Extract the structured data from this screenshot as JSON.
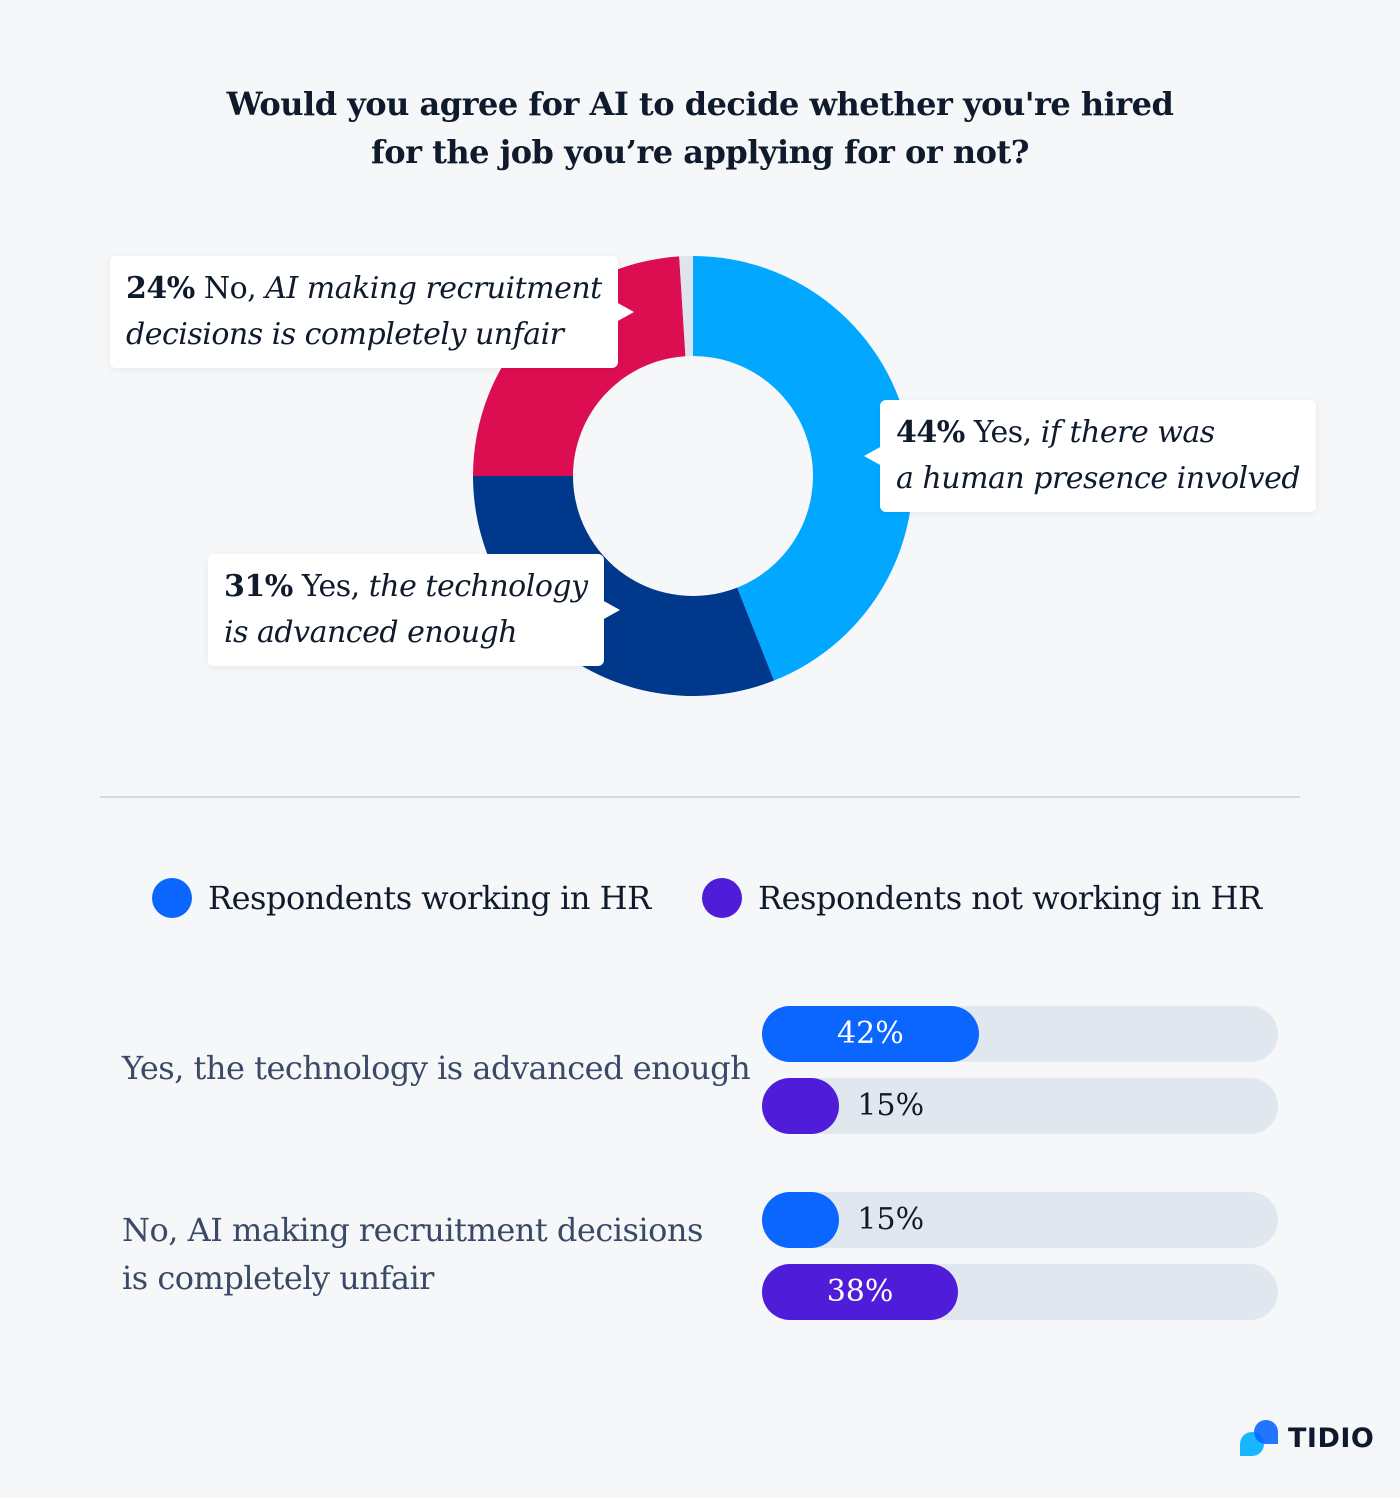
{
  "title_line1": "Would you agree for AI to decide whether you're hired",
  "title_line2": "for the job you’re applying for or not?",
  "chart_data": [
    {
      "type": "pie",
      "donut": true,
      "start": "top",
      "direction": "clockwise",
      "slices": [
        {
          "label": "Yes, if there was a human presence involved",
          "value": 44,
          "color": "#02a8ff"
        },
        {
          "label": "Yes, the technology is advanced enough",
          "value": 31,
          "color": "#00388b"
        },
        {
          "label": "No, AI making recruitment decisions is completely unfair",
          "value": 24,
          "color": "#dc0d50"
        },
        {
          "label": "",
          "value": 1,
          "color": "#dfe5ee"
        }
      ],
      "callouts": {
        "no": {
          "pct": "24%",
          "head": "No,",
          "line1": "AI making  recruitment",
          "line2": "decisions is completely unfair"
        },
        "yes_human": {
          "pct": "44%",
          "head": "Yes,",
          "line1": "if there was",
          "line2": "a human presence involved"
        },
        "yes_tech": {
          "pct": "31%",
          "head": "Yes,",
          "line1": "the technology",
          "line2": "is advanced enough"
        }
      }
    },
    {
      "type": "bar",
      "orientation": "horizontal",
      "xlim": [
        0,
        100
      ],
      "legend": [
        "Respondents working in HR",
        "Respondents not working in HR"
      ],
      "legend_placement": "top",
      "colors": [
        "#0a66ff",
        "#4f1dd9"
      ],
      "track_color": "#e1e7ef",
      "categories": [
        {
          "line1": "Yes, the technology is advanced enough",
          "line2": ""
        },
        {
          "line1": "No, AI making recruitment decisions",
          "line2": "is completely unfair"
        }
      ],
      "series": [
        {
          "name": "Respondents working in HR",
          "values": [
            42,
            15
          ],
          "labels": [
            "42%",
            "15%"
          ]
        },
        {
          "name": "Respondents not working in HR",
          "values": [
            15,
            38
          ],
          "labels": [
            "15%",
            "38%"
          ]
        }
      ]
    }
  ],
  "logo": {
    "text": "TIDIO",
    "icon": "tidio-chat-bubbles-icon"
  }
}
